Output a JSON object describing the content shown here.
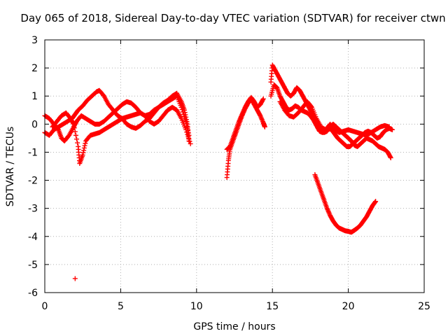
{
  "chart_data": {
    "type": "scatter",
    "title": "Day 065 of 2018, Sidereal Day-to-day VTEC variation (SDTVAR) for receiver ctwn",
    "xlabel": "GPS time / hours",
    "ylabel": "SDTVAR / TECUs",
    "xlim": [
      0,
      25
    ],
    "ylim": [
      -6,
      3
    ],
    "xticks": [
      0,
      5,
      10,
      15,
      20,
      25
    ],
    "yticks": [
      -6,
      -5,
      -4,
      -3,
      -2,
      -1,
      0,
      1,
      2,
      3
    ],
    "grid": true,
    "marker": "+",
    "color": "#ff0000",
    "series": [
      {
        "name": "track-a",
        "x": [
          0.0,
          0.3,
          0.6,
          0.9,
          1.2,
          1.5,
          1.8,
          2.0,
          2.2,
          2.5,
          2.8,
          3.1,
          3.4,
          3.6,
          3.9,
          4.2,
          4.5,
          4.8,
          5.1,
          5.4,
          5.7,
          6.0,
          6.3,
          6.6,
          6.9,
          7.2,
          7.5,
          7.8,
          8.1,
          8.4,
          8.7,
          9.0,
          9.2,
          9.4,
          9.5
        ],
        "y": [
          -0.3,
          -0.4,
          -0.2,
          -0.1,
          0.0,
          0.1,
          0.2,
          0.35,
          0.5,
          0.65,
          0.85,
          1.0,
          1.15,
          1.2,
          1.0,
          0.7,
          0.5,
          0.3,
          0.2,
          0.0,
          -0.1,
          -0.15,
          -0.05,
          0.1,
          0.2,
          0.4,
          0.6,
          0.75,
          0.85,
          1.0,
          1.1,
          0.8,
          0.5,
          0.0,
          -0.6
        ]
      },
      {
        "name": "track-b",
        "x": [
          0.0,
          0.3,
          0.6,
          0.9,
          1.1,
          1.3,
          1.6,
          1.9,
          2.1,
          2.4,
          2.7,
          3.0,
          3.3,
          3.6,
          3.9,
          4.2,
          4.5,
          4.8,
          5.1,
          5.4,
          5.7,
          6.0,
          6.3,
          6.6,
          6.9,
          7.2,
          7.5,
          7.8,
          8.1,
          8.4,
          8.7,
          9.0,
          9.3,
          9.5
        ],
        "y": [
          0.3,
          0.2,
          0.0,
          -0.2,
          -0.5,
          -0.6,
          -0.4,
          -0.1,
          0.1,
          0.3,
          0.2,
          0.1,
          0.0,
          0.0,
          0.1,
          0.25,
          0.4,
          0.55,
          0.7,
          0.8,
          0.75,
          0.6,
          0.4,
          0.3,
          0.35,
          0.5,
          0.6,
          0.7,
          0.8,
          0.9,
          1.0,
          0.6,
          0.1,
          -0.4
        ]
      },
      {
        "name": "track-c",
        "x": [
          0.5,
          0.8,
          1.1,
          1.4,
          1.7,
          1.9,
          2.2,
          2.3,
          2.5,
          2.7,
          3.0,
          3.3,
          3.6,
          3.9,
          4.2,
          4.5,
          4.8,
          5.1,
          5.4,
          5.7,
          6.0,
          6.3,
          6.6,
          6.9,
          7.2,
          7.5,
          7.8,
          8.1,
          8.4,
          8.7,
          9.0,
          9.3,
          9.6
        ],
        "y": [
          -0.1,
          0.1,
          0.3,
          0.4,
          0.2,
          0.0,
          -0.8,
          -1.4,
          -1.1,
          -0.6,
          -0.4,
          -0.35,
          -0.3,
          -0.2,
          -0.1,
          0.0,
          0.1,
          0.2,
          0.25,
          0.3,
          0.35,
          0.4,
          0.3,
          0.1,
          0.0,
          0.1,
          0.3,
          0.5,
          0.6,
          0.5,
          0.2,
          -0.2,
          -0.7
        ]
      },
      {
        "name": "track-d",
        "x": [
          12.0,
          12.1,
          12.2,
          12.4,
          12.6,
          12.8,
          13.0,
          13.2,
          13.4,
          13.6,
          13.8,
          14.0,
          14.2,
          14.4,
          14.5
        ],
        "y": [
          -1.9,
          -1.3,
          -0.9,
          -0.6,
          -0.3,
          0.0,
          0.3,
          0.55,
          0.75,
          0.9,
          0.7,
          0.5,
          0.3,
          0.05,
          -0.1
        ]
      },
      {
        "name": "track-e",
        "x": [
          12.0,
          12.2,
          12.4,
          12.6,
          12.8,
          13.0,
          13.2,
          13.4,
          13.6,
          13.8,
          14.0,
          14.2,
          14.4
        ],
        "y": [
          -0.9,
          -0.8,
          -0.5,
          -0.2,
          0.1,
          0.35,
          0.6,
          0.8,
          0.95,
          0.8,
          0.6,
          0.7,
          0.9
        ]
      },
      {
        "name": "track-f",
        "x": [
          14.9,
          15.0,
          15.2,
          15.4,
          15.6,
          15.8,
          16.0,
          16.2,
          16.4,
          16.6,
          16.8,
          17.0,
          17.2,
          17.4,
          17.6,
          17.8,
          18.0,
          18.2,
          18.4,
          18.6,
          18.8,
          19.0,
          19.2,
          19.4,
          19.6,
          19.8,
          20.0,
          20.2,
          20.4,
          20.6,
          20.8,
          21.0,
          21.2,
          21.4,
          21.6,
          21.8,
          22.0,
          22.2,
          22.4,
          22.6,
          22.8
        ],
        "y": [
          1.5,
          2.1,
          1.9,
          1.7,
          1.5,
          1.3,
          1.1,
          1.0,
          1.1,
          1.3,
          1.2,
          1.0,
          0.8,
          0.6,
          0.4,
          0.2,
          0.0,
          -0.2,
          -0.3,
          -0.25,
          -0.1,
          0.0,
          -0.1,
          -0.2,
          -0.3,
          -0.4,
          -0.5,
          -0.6,
          -0.75,
          -0.8,
          -0.7,
          -0.6,
          -0.5,
          -0.55,
          -0.6,
          -0.7,
          -0.8,
          -0.85,
          -0.9,
          -1.0,
          -1.2
        ]
      },
      {
        "name": "track-g",
        "x": [
          14.9,
          15.1,
          15.3,
          15.5,
          15.7,
          15.9,
          16.1,
          16.3,
          16.5,
          16.7,
          16.9,
          17.1,
          17.3,
          17.5,
          17.7,
          17.9,
          18.1,
          18.3,
          18.5,
          18.7,
          18.9,
          19.1,
          19.3,
          19.5,
          19.7,
          19.9,
          20.1,
          20.3,
          20.5,
          20.7,
          20.9,
          21.1,
          21.3,
          21.5,
          21.7,
          21.9,
          22.1,
          22.3,
          22.5,
          22.7,
          22.9
        ],
        "y": [
          1.0,
          1.4,
          1.3,
          1.0,
          0.8,
          0.6,
          0.5,
          0.55,
          0.65,
          0.6,
          0.5,
          0.45,
          0.4,
          0.3,
          0.15,
          -0.05,
          -0.25,
          -0.3,
          -0.25,
          -0.15,
          -0.2,
          -0.35,
          -0.5,
          -0.6,
          -0.7,
          -0.8,
          -0.8,
          -0.7,
          -0.6,
          -0.5,
          -0.4,
          -0.3,
          -0.25,
          -0.3,
          -0.4,
          -0.5,
          -0.45,
          -0.3,
          -0.2,
          -0.15,
          -0.2
        ]
      },
      {
        "name": "track-h",
        "x": [
          15.5,
          15.8,
          16.1,
          16.4,
          16.7,
          17.0,
          17.3,
          17.6,
          17.9,
          18.2,
          18.5,
          18.8,
          19.1,
          19.4,
          19.7,
          20.0,
          20.3,
          20.6,
          20.9,
          21.2,
          21.5,
          21.8,
          22.1,
          22.4,
          22.7
        ],
        "y": [
          0.8,
          0.5,
          0.3,
          0.25,
          0.4,
          0.6,
          0.8,
          0.6,
          0.2,
          -0.1,
          -0.2,
          0.0,
          -0.2,
          -0.3,
          -0.25,
          -0.2,
          -0.25,
          -0.3,
          -0.35,
          -0.4,
          -0.3,
          -0.2,
          -0.1,
          -0.05,
          -0.1
        ]
      },
      {
        "name": "track-i",
        "x": [
          17.8,
          18.0,
          18.2,
          18.4,
          18.6,
          18.8,
          19.0,
          19.2,
          19.4,
          19.6,
          19.8,
          20.0,
          20.2,
          20.4,
          20.6,
          20.8,
          21.0,
          21.2,
          21.4,
          21.6,
          21.8
        ],
        "y": [
          -1.8,
          -2.1,
          -2.4,
          -2.7,
          -3.0,
          -3.25,
          -3.45,
          -3.6,
          -3.7,
          -3.75,
          -3.8,
          -3.82,
          -3.85,
          -3.78,
          -3.7,
          -3.6,
          -3.45,
          -3.3,
          -3.1,
          -2.9,
          -2.75
        ]
      },
      {
        "name": "outlier",
        "x": [
          2.0
        ],
        "y": [
          -5.5
        ]
      }
    ]
  }
}
